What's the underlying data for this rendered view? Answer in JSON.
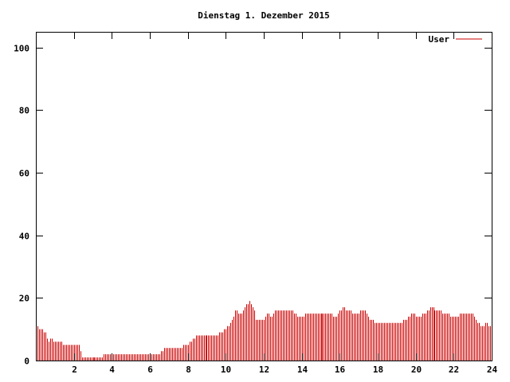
{
  "chart_data": {
    "type": "bar",
    "title": "Dienstag 1. Dezember 2015",
    "xlabel": "",
    "ylabel": "",
    "xlim": [
      0,
      24
    ],
    "ylim": [
      0,
      105
    ],
    "xticks": [
      "2",
      "4",
      "6",
      "8",
      "10",
      "12",
      "14",
      "16",
      "18",
      "20",
      "22",
      "24"
    ],
    "yticks": [
      "0",
      "20",
      "40",
      "60",
      "80",
      "100"
    ],
    "grid": false,
    "legend_position": "top-right",
    "series": [
      {
        "name": "User",
        "color": "#cc0000",
        "knots": [
          [
            0.0,
            11
          ],
          [
            0.25,
            10
          ],
          [
            0.5,
            9
          ],
          [
            0.65,
            6
          ],
          [
            0.8,
            7
          ],
          [
            0.95,
            6
          ],
          [
            1.2,
            6
          ],
          [
            1.6,
            5
          ],
          [
            2.25,
            5
          ],
          [
            2.35,
            2
          ],
          [
            2.45,
            1
          ],
          [
            3.5,
            1
          ],
          [
            3.6,
            2
          ],
          [
            4.0,
            2
          ],
          [
            6.5,
            2
          ],
          [
            6.6,
            3
          ],
          [
            6.8,
            4
          ],
          [
            7.5,
            4
          ],
          [
            7.9,
            5
          ],
          [
            8.15,
            6
          ],
          [
            8.5,
            8
          ],
          [
            9.5,
            8
          ],
          [
            9.95,
            10
          ],
          [
            10.3,
            12
          ],
          [
            10.5,
            16
          ],
          [
            10.8,
            15
          ],
          [
            11.0,
            17
          ],
          [
            11.3,
            19
          ],
          [
            11.5,
            16
          ],
          [
            11.6,
            13
          ],
          [
            12.0,
            13
          ],
          [
            12.2,
            15
          ],
          [
            12.4,
            14
          ],
          [
            12.6,
            16
          ],
          [
            13.5,
            16
          ],
          [
            13.8,
            14
          ],
          [
            14.5,
            15
          ],
          [
            15.0,
            15
          ],
          [
            15.5,
            15
          ],
          [
            15.8,
            14
          ],
          [
            16.2,
            17
          ],
          [
            16.4,
            16
          ],
          [
            16.8,
            15
          ],
          [
            17.3,
            16
          ],
          [
            17.6,
            13
          ],
          [
            18.0,
            12
          ],
          [
            18.5,
            12
          ],
          [
            19.0,
            12
          ],
          [
            19.5,
            13
          ],
          [
            19.8,
            15
          ],
          [
            20.1,
            14
          ],
          [
            20.4,
            15
          ],
          [
            20.8,
            17
          ],
          [
            21.1,
            16
          ],
          [
            21.6,
            15
          ],
          [
            22.0,
            14
          ],
          [
            22.5,
            15
          ],
          [
            23.0,
            15
          ],
          [
            23.2,
            12
          ],
          [
            23.5,
            11
          ],
          [
            23.7,
            12
          ],
          [
            23.85,
            11
          ],
          [
            24.0,
            10
          ]
        ]
      }
    ]
  }
}
